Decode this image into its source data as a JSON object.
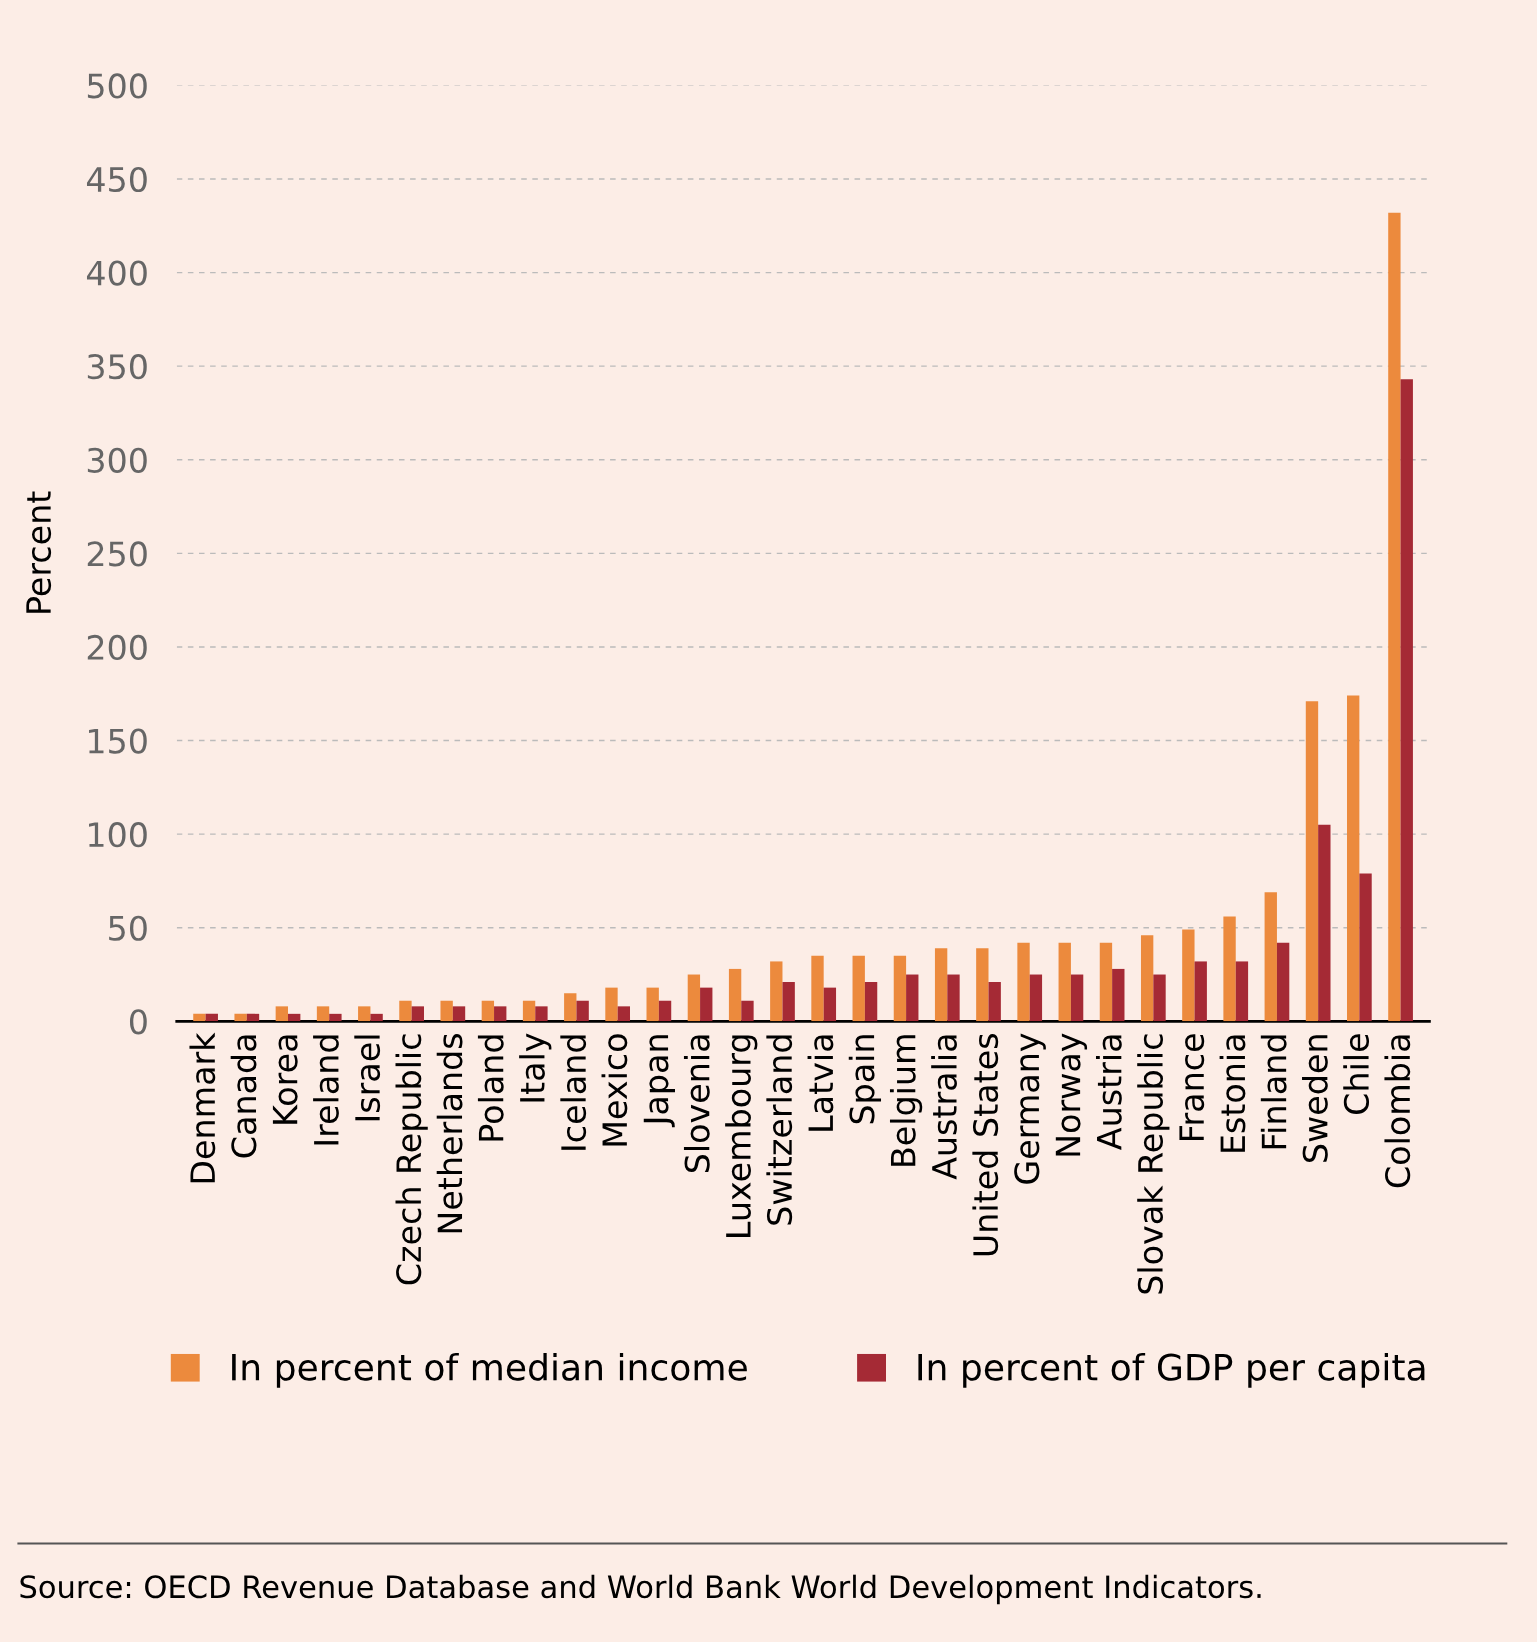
{
  "chart_data": {
    "type": "bar",
    "ylabel": "Percent",
    "categories": [
      "Denmark",
      "Canada",
      "Korea",
      "Ireland",
      "Israel",
      "Czech Republic",
      "Netherlands",
      "Poland",
      "Italy",
      "Iceland",
      "Mexico",
      "Japan",
      "Slovenia",
      "Luxembourg",
      "Switzerland",
      "Latvia",
      "Spain",
      "Belgium",
      "Australia",
      "United States",
      "Germany",
      "Norway",
      "Austria",
      "Slovak Republic",
      "France",
      "Estonia",
      "Finland",
      "Sweden",
      "Chile",
      "Colombia"
    ],
    "series": [
      {
        "name": "In percent of median income",
        "color": "#ec8a3d",
        "values": [
          4,
          4,
          8,
          8,
          8,
          11,
          11,
          11,
          11,
          15,
          18,
          18,
          25,
          28,
          32,
          35,
          35,
          35,
          39,
          39,
          42,
          42,
          42,
          46,
          49,
          56,
          69,
          171,
          174,
          432
        ]
      },
      {
        "name": "In percent of GDP per capita",
        "color": "#a52a35",
        "values": [
          4,
          4,
          4,
          4,
          4,
          8,
          8,
          8,
          8,
          11,
          8,
          11,
          18,
          11,
          21,
          18,
          21,
          25,
          25,
          21,
          25,
          25,
          28,
          25,
          32,
          32,
          42,
          105,
          79,
          343
        ]
      }
    ],
    "ylim": [
      0,
      500
    ],
    "yticks": [
      0,
      50,
      100,
      150,
      200,
      250,
      300,
      350,
      400,
      450,
      500
    ],
    "grid": "y",
    "legend": "bottom",
    "annotations": [
      "Source: OECD Revenue Database and World Bank World Development Indicators."
    ]
  }
}
